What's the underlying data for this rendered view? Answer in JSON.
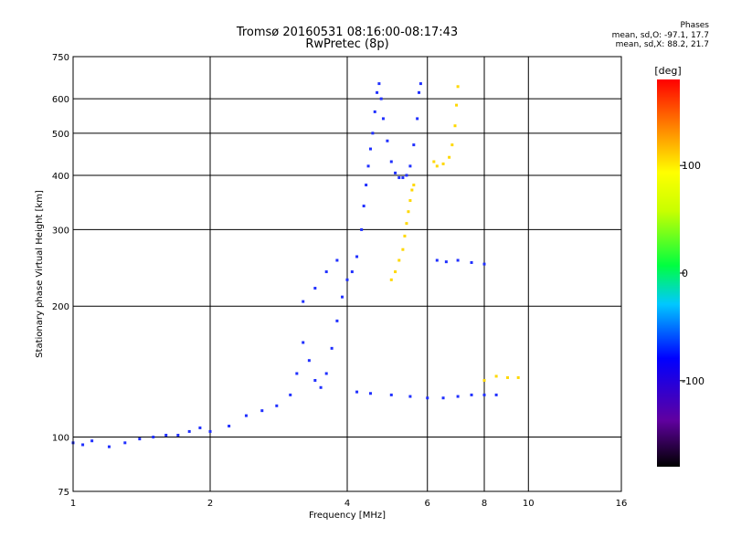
{
  "header": {
    "title": "Tromsø 20160531 08:16:00-08:17:43",
    "subtitle": "RwPretec (8p)",
    "phases_title": "Phases",
    "phases_o": "mean, sd,O: -97.1, 17.7",
    "phases_x": "mean, sd,X:  88.2, 21.7"
  },
  "chart_data": {
    "type": "scatter",
    "xlabel": "Frequency [MHz]",
    "ylabel": "Stationary phase Virtual Height [km]",
    "xscale": "log",
    "yscale": "log",
    "xlim": [
      1,
      16
    ],
    "ylim": [
      75,
      750
    ],
    "x_ticks": [
      1,
      2,
      4,
      6,
      8,
      10,
      16
    ],
    "y_ticks": [
      75,
      100,
      200,
      300,
      400,
      500,
      600,
      750
    ],
    "grid": true,
    "colorbar": {
      "label": "[deg]",
      "range": [
        -180,
        180
      ],
      "ticks": [
        100,
        0,
        -100
      ]
    },
    "series": [
      {
        "mode": "O",
        "color_phase": -100,
        "points": [
          [
            1.0,
            97
          ],
          [
            1.05,
            96
          ],
          [
            1.1,
            98
          ],
          [
            1.2,
            95
          ],
          [
            1.3,
            97
          ],
          [
            1.4,
            99
          ],
          [
            1.5,
            100
          ],
          [
            1.6,
            101
          ],
          [
            1.7,
            101
          ],
          [
            1.8,
            103
          ],
          [
            1.9,
            105
          ],
          [
            2.0,
            103
          ],
          [
            2.2,
            106
          ],
          [
            2.4,
            112
          ],
          [
            2.6,
            115
          ],
          [
            2.8,
            118
          ],
          [
            3.0,
            125
          ],
          [
            3.1,
            140
          ],
          [
            3.2,
            165
          ],
          [
            3.3,
            150
          ],
          [
            3.4,
            135
          ],
          [
            3.5,
            130
          ],
          [
            3.6,
            140
          ],
          [
            3.7,
            160
          ],
          [
            3.8,
            185
          ],
          [
            3.9,
            210
          ],
          [
            4.0,
            230
          ],
          [
            4.1,
            240
          ],
          [
            4.2,
            260
          ],
          [
            4.3,
            300
          ],
          [
            4.35,
            340
          ],
          [
            4.4,
            380
          ],
          [
            4.45,
            420
          ],
          [
            4.5,
            460
          ],
          [
            4.55,
            500
          ],
          [
            4.6,
            560
          ],
          [
            4.65,
            620
          ],
          [
            4.7,
            650
          ],
          [
            4.75,
            600
          ],
          [
            4.8,
            540
          ],
          [
            4.9,
            480
          ],
          [
            5.0,
            430
          ],
          [
            5.1,
            405
          ],
          [
            5.2,
            395
          ],
          [
            5.3,
            395
          ],
          [
            5.4,
            400
          ],
          [
            5.5,
            420
          ],
          [
            5.6,
            470
          ],
          [
            5.7,
            540
          ],
          [
            5.75,
            620
          ],
          [
            5.8,
            650
          ],
          [
            4.2,
            127
          ],
          [
            4.5,
            126
          ],
          [
            5.0,
            125
          ],
          [
            5.5,
            124
          ],
          [
            6.0,
            123
          ],
          [
            6.5,
            123
          ],
          [
            7.0,
            124
          ],
          [
            7.5,
            125
          ],
          [
            8.0,
            125
          ],
          [
            8.5,
            125
          ],
          [
            3.2,
            205
          ],
          [
            3.4,
            220
          ],
          [
            3.6,
            240
          ],
          [
            3.8,
            255
          ],
          [
            6.3,
            255
          ],
          [
            6.6,
            253
          ],
          [
            7.0,
            255
          ],
          [
            7.5,
            252
          ],
          [
            8.0,
            250
          ]
        ]
      },
      {
        "mode": "X",
        "color_phase": 100,
        "points": [
          [
            5.0,
            230
          ],
          [
            5.1,
            240
          ],
          [
            5.2,
            255
          ],
          [
            5.3,
            270
          ],
          [
            5.35,
            290
          ],
          [
            5.4,
            310
          ],
          [
            5.45,
            330
          ],
          [
            5.5,
            350
          ],
          [
            5.55,
            370
          ],
          [
            5.6,
            380
          ],
          [
            6.2,
            430
          ],
          [
            6.3,
            420
          ],
          [
            6.5,
            425
          ],
          [
            6.7,
            440
          ],
          [
            6.8,
            470
          ],
          [
            6.9,
            520
          ],
          [
            6.95,
            580
          ],
          [
            7.0,
            640
          ],
          [
            8.0,
            135
          ],
          [
            8.5,
            138
          ],
          [
            9.0,
            137
          ],
          [
            9.5,
            137
          ]
        ]
      }
    ]
  }
}
